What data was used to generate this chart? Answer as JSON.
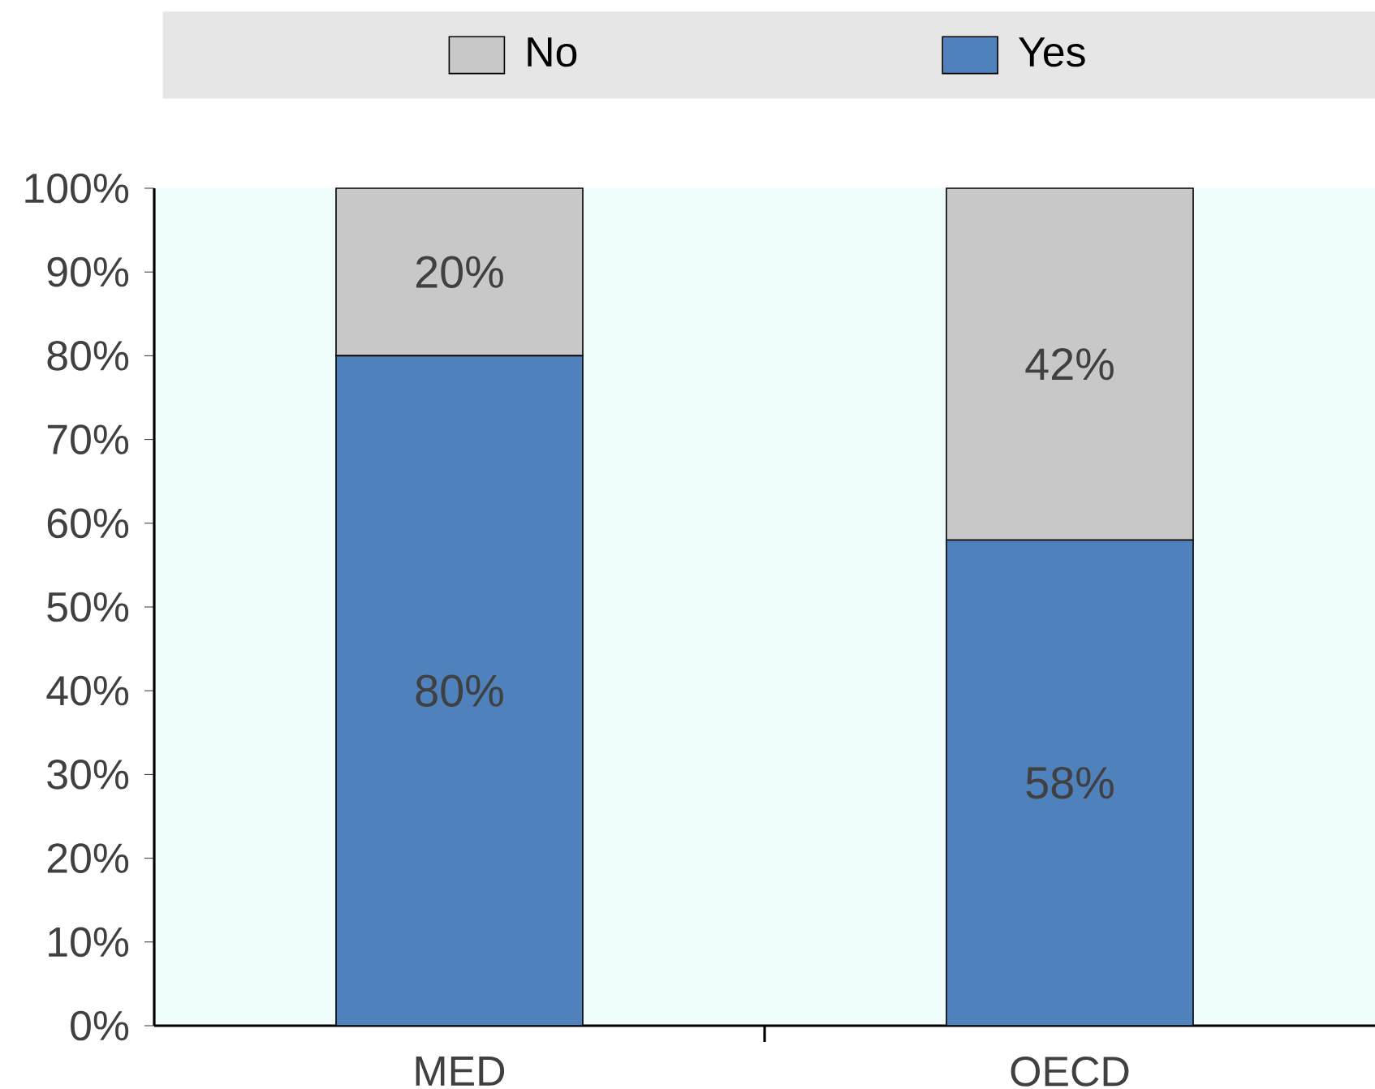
{
  "chart_data": {
    "type": "bar",
    "stacked": true,
    "categories": [
      "MED",
      "OECD"
    ],
    "series": [
      {
        "name": "Yes",
        "color": "#4f81bd",
        "values": [
          80,
          58
        ],
        "value_labels": [
          "80%",
          "58%"
        ]
      },
      {
        "name": "No",
        "color": "#c8c8c8",
        "values": [
          20,
          42
        ],
        "value_labels": [
          "20%",
          "42%"
        ]
      }
    ],
    "ylim": [
      0,
      100
    ],
    "yticks": [
      {
        "value": 0,
        "label": "0%"
      },
      {
        "value": 10,
        "label": "10%"
      },
      {
        "value": 20,
        "label": "20%"
      },
      {
        "value": 30,
        "label": "30%"
      },
      {
        "value": 40,
        "label": "40%"
      },
      {
        "value": 50,
        "label": "50%"
      },
      {
        "value": 60,
        "label": "60%"
      },
      {
        "value": 70,
        "label": "70%"
      },
      {
        "value": 80,
        "label": "80%"
      },
      {
        "value": 90,
        "label": "90%"
      },
      {
        "value": 100,
        "label": "100%"
      }
    ],
    "legend": "top",
    "grid": false
  }
}
